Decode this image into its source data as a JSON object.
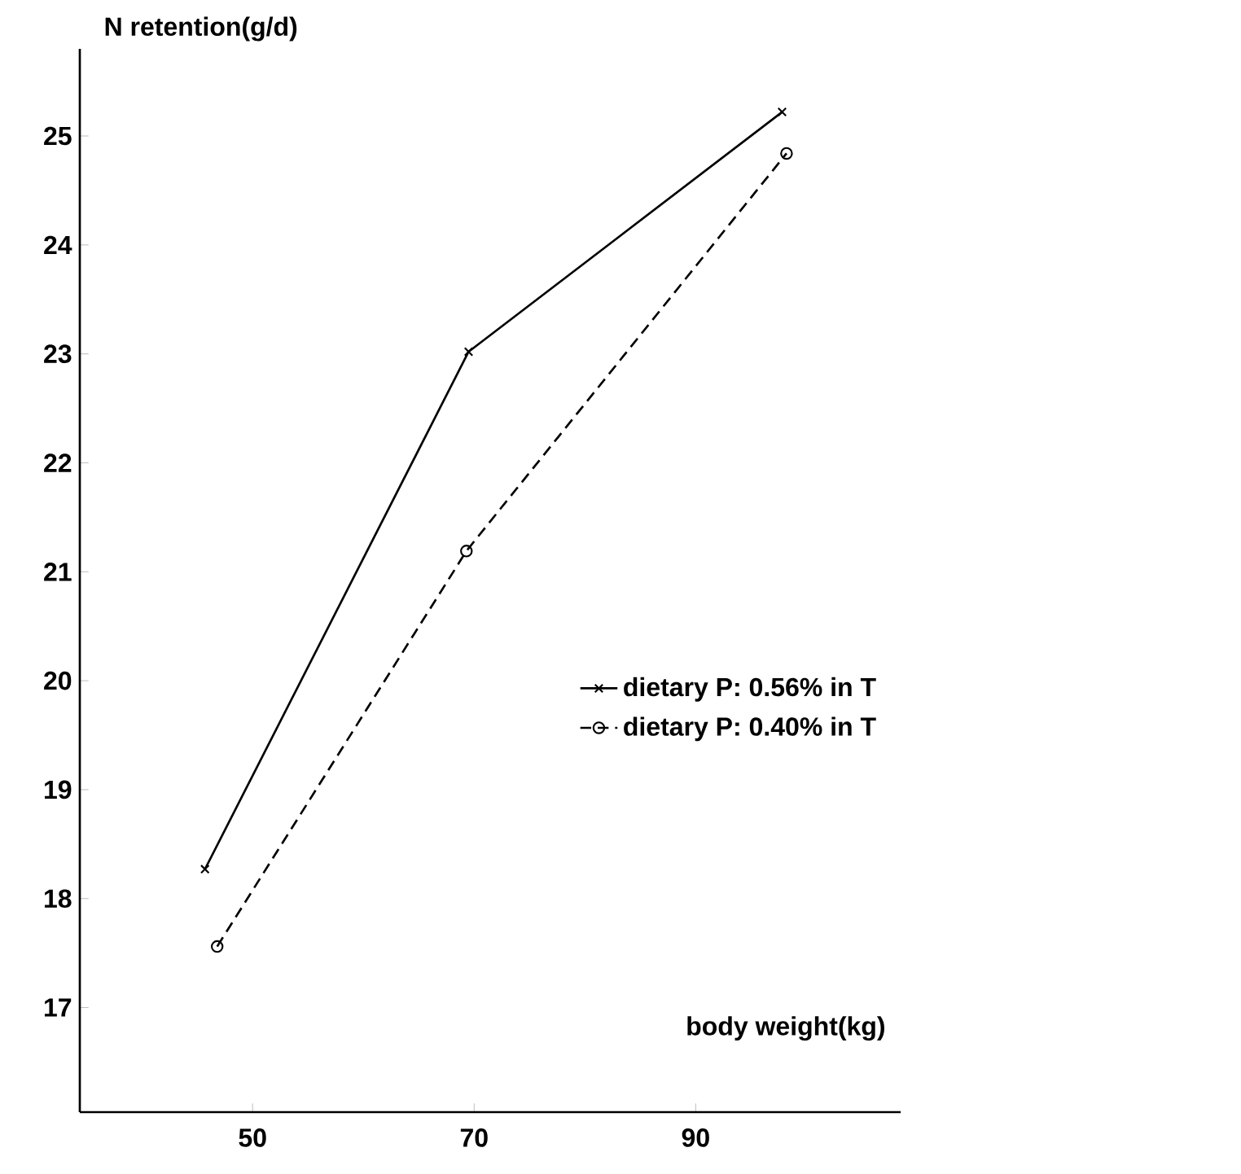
{
  "chart_data": {
    "type": "line",
    "ylabel": "N retention(g/d)",
    "xlabel": "body weight(kg)",
    "xlim": [
      34.4,
      108.5
    ],
    "ylim": [
      16.04,
      25.8
    ],
    "xticks": [
      50,
      70,
      90
    ],
    "yticks": [
      17,
      18,
      19,
      20,
      21,
      22,
      23,
      24,
      25
    ],
    "legend": "right",
    "grid": false,
    "series": [
      {
        "name": "dietary P: 0.56% in T",
        "color": "#000000",
        "marker": "cross",
        "line_style": "solid",
        "x": [
          45.7,
          69.5,
          97.8
        ],
        "values": [
          18.27,
          23.02,
          25.22
        ]
      },
      {
        "name": "dietary P: 0.40% in T",
        "color": "#000000",
        "marker": "circle",
        "line_style": "dashed",
        "x": [
          46.8,
          69.3,
          98.2
        ],
        "values": [
          17.56,
          21.19,
          24.84
        ]
      }
    ]
  }
}
